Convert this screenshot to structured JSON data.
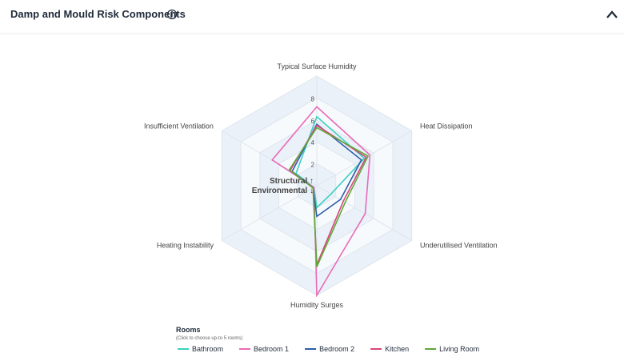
{
  "header": {
    "title": "Damp and Mould Risk Components"
  },
  "chart_data": {
    "type": "radar",
    "categories": [
      "Typical Surface Humidity",
      "Heat Dissipation",
      "Underutilised Ventilation",
      "Humidity Surges",
      "Heating Instability",
      "Insufficient Ventilation"
    ],
    "rlim": [
      0,
      10
    ],
    "rticks": [
      2,
      4,
      6,
      8
    ],
    "annotation": "Structural ↑\nEnvironmental ↓",
    "legend_title": "Rooms",
    "legend_subtitle": "(Click to choose up-to 5 rooms)",
    "series": [
      {
        "name": "Bathroom",
        "color": "#3ccfc0",
        "values": [
          6.3,
          5.0,
          1.5,
          2.0,
          0.3,
          2.2
        ]
      },
      {
        "name": "Bedroom 1",
        "color": "#e86bb8",
        "values": [
          7.2,
          5.6,
          5.1,
          10,
          0.3,
          4.7
        ]
      },
      {
        "name": "Bedroom 2",
        "color": "#2d5ea8",
        "values": [
          5.6,
          4.7,
          2.5,
          2.8,
          0.4,
          2.6
        ]
      },
      {
        "name": "Kitchen",
        "color": "#d9467a",
        "values": [
          5.5,
          5.2,
          2.8,
          7.2,
          0.4,
          2.8
        ]
      },
      {
        "name": "Living Room",
        "color": "#5fa83a",
        "values": [
          5.3,
          5.4,
          3.0,
          7.4,
          0.4,
          2.9
        ]
      }
    ]
  }
}
